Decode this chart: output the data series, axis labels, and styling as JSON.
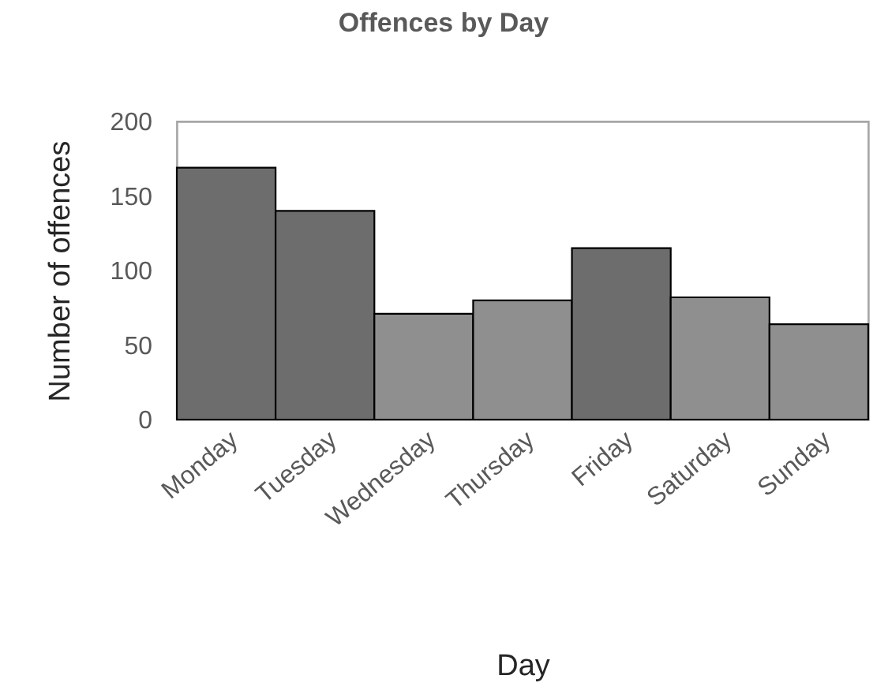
{
  "chart_data": {
    "type": "bar",
    "title": "Offences by Day",
    "xlabel": "Day",
    "ylabel": "Number of offences",
    "categories": [
      "Monday",
      "Tuesday",
      "Wednesday",
      "Thursday",
      "Friday",
      "Saturday",
      "Sunday"
    ],
    "values": [
      169,
      140,
      71,
      80,
      115,
      82,
      64
    ],
    "colors": [
      "#6d6d6d",
      "#6d6d6d",
      "#8f8f8f",
      "#8f8f8f",
      "#6d6d6d",
      "#8f8f8f",
      "#8f8f8f"
    ],
    "ylim": [
      0,
      200
    ],
    "yticks": [
      0,
      50,
      100,
      150,
      200
    ],
    "grid": false
  }
}
